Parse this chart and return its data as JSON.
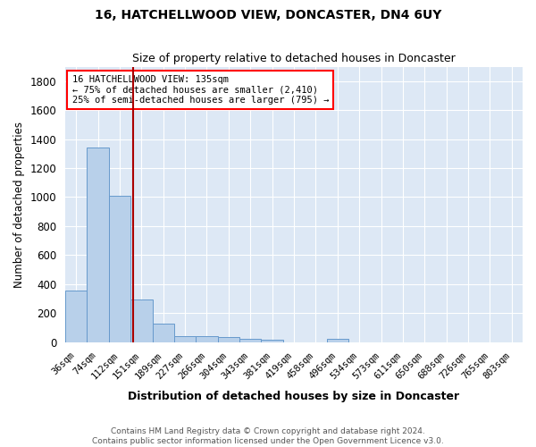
{
  "title": "16, HATCHELLWOOD VIEW, DONCASTER, DN4 6UY",
  "subtitle": "Size of property relative to detached houses in Doncaster",
  "xlabel": "Distribution of detached houses by size in Doncaster",
  "ylabel": "Number of detached properties",
  "footnote1": "Contains HM Land Registry data © Crown copyright and database right 2024.",
  "footnote2": "Contains public sector information licensed under the Open Government Licence v3.0.",
  "bin_labels": [
    "36sqm",
    "74sqm",
    "112sqm",
    "151sqm",
    "189sqm",
    "227sqm",
    "266sqm",
    "304sqm",
    "343sqm",
    "381sqm",
    "419sqm",
    "458sqm",
    "496sqm",
    "534sqm",
    "573sqm",
    "611sqm",
    "650sqm",
    "688sqm",
    "726sqm",
    "765sqm",
    "803sqm"
  ],
  "bar_values": [
    355,
    1340,
    1010,
    295,
    130,
    40,
    38,
    33,
    20,
    18,
    0,
    0,
    20,
    0,
    0,
    0,
    0,
    0,
    0,
    0,
    0
  ],
  "bar_color": "#b8d0ea",
  "bar_edgecolor": "#6699cc",
  "plot_bg_color": "#dde8f5",
  "fig_bg_color": "#ffffff",
  "grid_color": "#ffffff",
  "red_line_x": 2.6,
  "annotation_text1": "16 HATCHELLWOOD VIEW: 135sqm",
  "annotation_text2": "← 75% of detached houses are smaller (2,410)",
  "annotation_text3": "25% of semi-detached houses are larger (795) →",
  "ylim": [
    0,
    1900
  ],
  "yticks": [
    0,
    200,
    400,
    600,
    800,
    1000,
    1200,
    1400,
    1600,
    1800
  ]
}
